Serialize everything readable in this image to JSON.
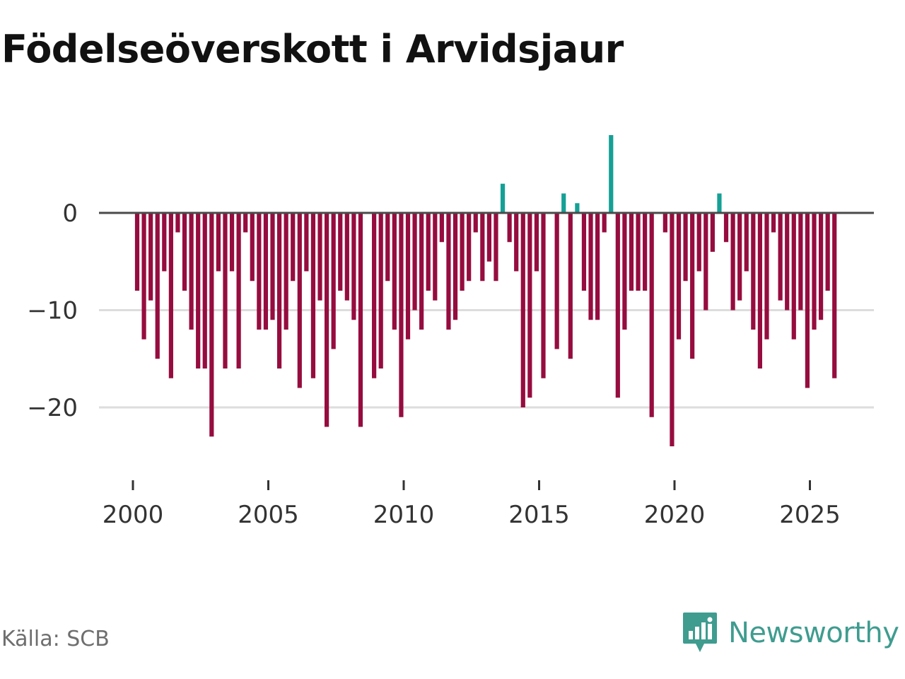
{
  "chart_data": {
    "type": "bar",
    "title": "Födelseöverskott i Arvidsjaur",
    "xlabel": "",
    "ylabel": "",
    "ylim": [
      -27,
      9
    ],
    "xlim": [
      1998.75,
      2027.25
    ],
    "yticks": [
      {
        "value": 0,
        "label": "0"
      },
      {
        "value": -10,
        "label": "−10"
      },
      {
        "value": -20,
        "label": "−20"
      }
    ],
    "xticks": [
      {
        "value": 2000,
        "label": "2000"
      },
      {
        "value": 2005,
        "label": "2005"
      },
      {
        "value": 2010,
        "label": "2010"
      },
      {
        "value": 2015,
        "label": "2015"
      },
      {
        "value": 2020,
        "label": "2020"
      },
      {
        "value": 2025,
        "label": "2025"
      }
    ],
    "grid": true,
    "period": "quarterly",
    "start_year": 2000,
    "positive_color": "#15a096",
    "negative_color": "#960c3e",
    "zero_line_color": "#4a4a4a",
    "grid_color": "#dddddd",
    "values": [
      -8,
      -13,
      -9,
      -15,
      -6,
      -17,
      -2,
      -8,
      -12,
      -16,
      -16,
      -23,
      -6,
      -16,
      -6,
      -16,
      -2,
      -7,
      -12,
      -12,
      -11,
      -16,
      -12,
      -7,
      -18,
      -6,
      -17,
      -9,
      -22,
      -14,
      -8,
      -9,
      -11,
      -22,
      0,
      -17,
      -16,
      -7,
      -12,
      -21,
      -13,
      -10,
      -12,
      -8,
      -9,
      -3,
      -12,
      -11,
      -8,
      -7,
      -2,
      -7,
      -5,
      -7,
      3,
      -3,
      -6,
      -20,
      -19,
      -6,
      -17,
      0,
      -14,
      2,
      -15,
      1,
      -8,
      -11,
      -11,
      -2,
      8,
      -19,
      -12,
      -8,
      -8,
      -8,
      -21,
      0,
      -2,
      -24,
      -13,
      -7,
      -15,
      -6,
      -10,
      -4,
      2,
      -3,
      -10,
      -9,
      -6,
      -12,
      -16,
      -13,
      -2,
      -9,
      -10,
      -13,
      -10,
      -18,
      -12,
      -11,
      -8,
      -17
    ]
  },
  "footer": {
    "source": "Källa: SCB",
    "brand": "Newsworthy"
  }
}
